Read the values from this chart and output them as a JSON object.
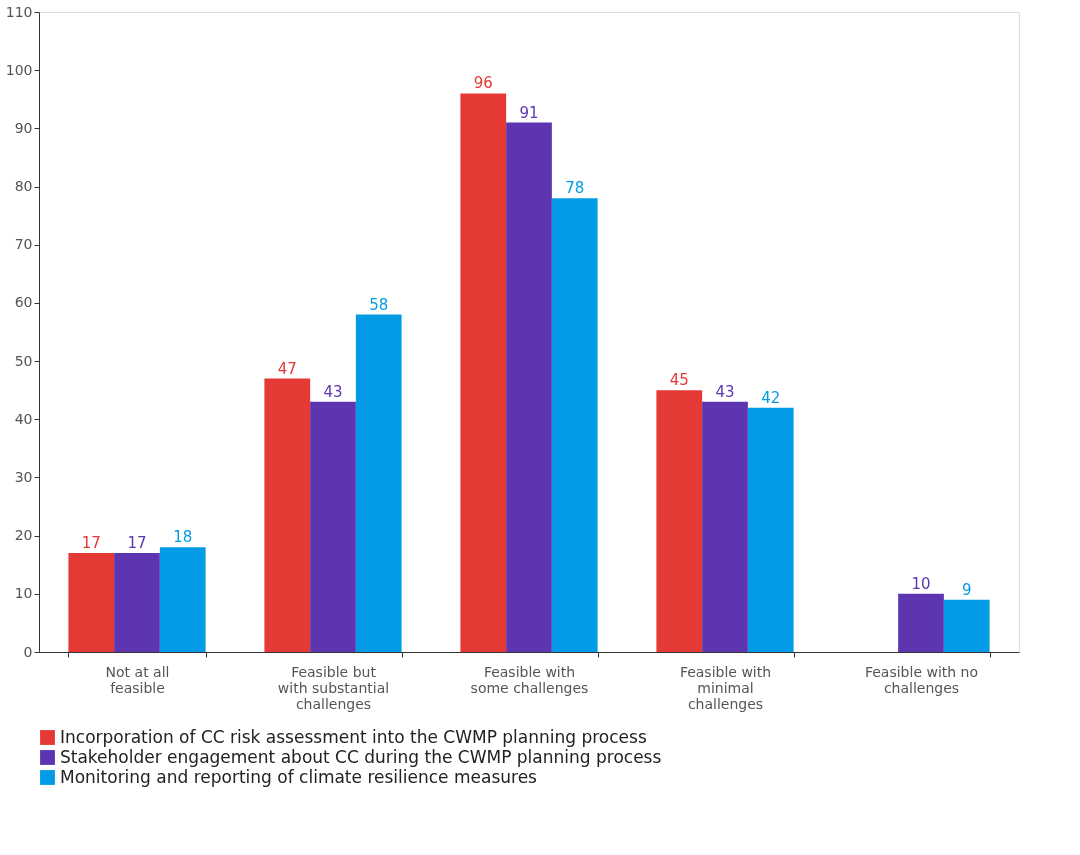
{
  "chart_data": {
    "type": "bar",
    "categories": [
      "Not at all feasible",
      "Feasible but with substantial challenges",
      "Feasible with some challenges",
      "Feasible with minimal challenges",
      "Feasible with no challenges"
    ],
    "series": [
      {
        "name": "Incorporation of CC risk assessment into the CWMP planning process",
        "color": "#e53935",
        "values": [
          17,
          47,
          96,
          45,
          null
        ]
      },
      {
        "name": "Stakeholder engagement about CC during the CWMP planning process",
        "color": "#5e35b1",
        "values": [
          17,
          43,
          91,
          43,
          10
        ]
      },
      {
        "name": "Monitoring and reporting of climate resilience measures",
        "color": "#039be5",
        "values": [
          18,
          58,
          78,
          42,
          9
        ]
      }
    ],
    "ylim": [
      0,
      110
    ],
    "yticks": [
      0,
      10,
      20,
      30,
      40,
      50,
      60,
      70,
      80,
      90,
      100,
      110
    ],
    "grid": false,
    "legend": "bottom",
    "data_labels": true
  }
}
